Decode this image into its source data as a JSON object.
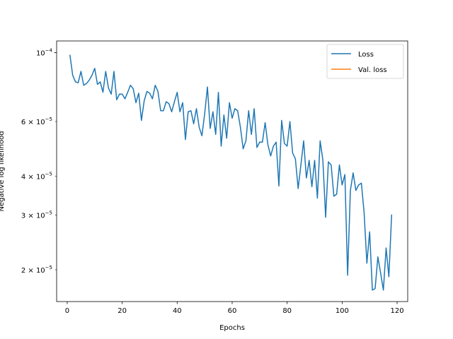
{
  "chart_data": {
    "type": "line",
    "title": "",
    "xlabel": "Epochs",
    "ylabel": "Negative log likelihood",
    "xscale": "linear",
    "yscale": "log",
    "xlim": [
      -3.85,
      123.85
    ],
    "ylim": [
      1.58e-05,
      0.000109
    ],
    "x_ticks": [
      0,
      20,
      40,
      60,
      80,
      100,
      120
    ],
    "x_tick_labels": [
      "0",
      "20",
      "40",
      "60",
      "80",
      "100",
      "120"
    ],
    "y_major_ticks": [
      0.0001
    ],
    "y_major_tick_labels": [
      {
        "base": "10",
        "exp": "−4"
      }
    ],
    "y_minor_ticks": [
      2e-05,
      3e-05,
      4e-05,
      6e-05
    ],
    "y_minor_tick_labels": [
      {
        "mant": "2",
        "base": "10",
        "exp": "−5"
      },
      {
        "mant": "3",
        "base": "10",
        "exp": "−5"
      },
      {
        "mant": "4",
        "base": "10",
        "exp": "−5"
      },
      {
        "mant": "6",
        "base": "10",
        "exp": "−5"
      }
    ],
    "legend_position": "upper right",
    "series": [
      {
        "name": "Loss",
        "color": "#1f77b4",
        "x": [
          1,
          2,
          3,
          4,
          5,
          6,
          7,
          8,
          9,
          10,
          11,
          12,
          13,
          14,
          15,
          16,
          17,
          18,
          19,
          20,
          21,
          22,
          23,
          24,
          25,
          26,
          27,
          28,
          29,
          30,
          31,
          32,
          33,
          34,
          35,
          36,
          37,
          38,
          39,
          40,
          41,
          42,
          43,
          44,
          45,
          46,
          47,
          48,
          49,
          50,
          51,
          52,
          53,
          54,
          55,
          56,
          57,
          58,
          59,
          60,
          61,
          62,
          63,
          64,
          65,
          66,
          67,
          68,
          69,
          70,
          71,
          72,
          73,
          74,
          75,
          76,
          77,
          78,
          79,
          80,
          81,
          82,
          83,
          84,
          85,
          86,
          87,
          88,
          89,
          90,
          91,
          92,
          93,
          94,
          95,
          96,
          97,
          98,
          99,
          100,
          101,
          102,
          103,
          104,
          105,
          106,
          107,
          108,
          109,
          110,
          111,
          112,
          113,
          114,
          115,
          116,
          117,
          118
        ],
        "values": [
          9.8e-05,
          8.45e-05,
          8.05e-05,
          8e-05,
          8.7e-05,
          7.85e-05,
          7.95e-05,
          8.15e-05,
          8.45e-05,
          8.9e-05,
          7.9e-05,
          8.05e-05,
          7.45e-05,
          8.7e-05,
          7.7e-05,
          7.35e-05,
          8.7e-05,
          7.05e-05,
          7.35e-05,
          7.35e-05,
          7.1e-05,
          7.45e-05,
          7.85e-05,
          7.65e-05,
          6.9e-05,
          7.4e-05,
          6.05e-05,
          7e-05,
          7.5e-05,
          7.4e-05,
          7.1e-05,
          7.85e-05,
          7.5e-05,
          6.5e-05,
          6.5e-05,
          6.95e-05,
          6.85e-05,
          6.45e-05,
          6.95e-05,
          7.45e-05,
          6.45e-05,
          6.9e-05,
          5.25e-05,
          6.45e-05,
          6.5e-05,
          5.9e-05,
          6.6e-05,
          5.75e-05,
          5.4e-05,
          6.35e-05,
          7.75e-05,
          5.7e-05,
          6.45e-05,
          5.45e-05,
          7.45e-05,
          5e-05,
          6.3e-05,
          5.3e-05,
          6.9e-05,
          6.15e-05,
          6.6e-05,
          6.5e-05,
          5.75e-05,
          4.9e-05,
          5.2e-05,
          6.5e-05,
          5.45e-05,
          6.6e-05,
          4.95e-05,
          5.15e-05,
          5.15e-05,
          5.95e-05,
          5.05e-05,
          4.65e-05,
          5e-05,
          5.15e-05,
          3.72e-05,
          6.05e-05,
          5.1e-05,
          5e-05,
          6e-05,
          4.75e-05,
          4.55e-05,
          3.65e-05,
          4.35e-05,
          5.2e-05,
          3.95e-05,
          4.5e-05,
          3.7e-05,
          4.5e-05,
          3.4e-05,
          5.2e-05,
          4.5e-05,
          2.95e-05,
          4.45e-05,
          4.35e-05,
          3.45e-05,
          3.5e-05,
          4.35e-05,
          3.75e-05,
          4.05e-05,
          1.92e-05,
          3.6e-05,
          4.1e-05,
          3.6e-05,
          3.75e-05,
          3.8e-05,
          3.05e-05,
          2.1e-05,
          2.65e-05,
          1.72e-05,
          1.74e-05,
          2.2e-05,
          1.95e-05,
          1.72e-05,
          2.35e-05,
          1.9e-05,
          3e-05
        ]
      },
      {
        "name": "Val. loss",
        "color": "#ff7f0e",
        "x": [],
        "values": []
      }
    ]
  }
}
